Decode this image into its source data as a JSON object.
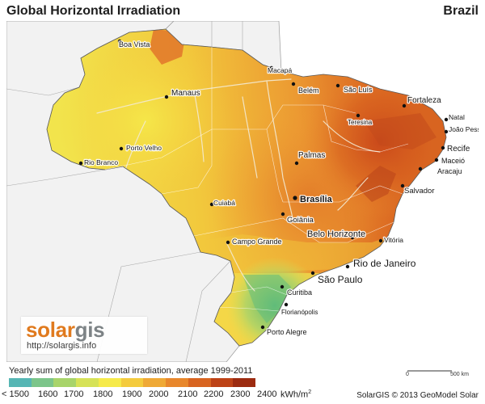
{
  "header": {
    "title": "Global Horizontal Irradiation",
    "country": "Brazil"
  },
  "logo": {
    "word_solar": "solar",
    "word_gis": "gis",
    "url": "http://solargis.info"
  },
  "legend": {
    "title": "Yearly sum of global horizontal irradiation, average 1999-2011",
    "labels": [
      "< 1500",
      "1600",
      "1700",
      "1800",
      "1900",
      "2000",
      "2100",
      "2200",
      "2300",
      "2400"
    ],
    "unit": "kWh/m",
    "unit_sup": "2",
    "colors": [
      "#56b6b4",
      "#7cc58a",
      "#a8d46a",
      "#d6e257",
      "#f6ea4a",
      "#f4cb3d",
      "#efa936",
      "#e8872c",
      "#d86420",
      "#bd4216",
      "#9c2b10"
    ]
  },
  "scale_bar": {
    "zero": "0",
    "label": "500 km"
  },
  "credit": "SolarGIS © 2013 GeoModel Solar",
  "map": {
    "colors": {
      "ocean": "#ffffff",
      "neighbors": "#f2f2f2",
      "border": "#8f8f8f",
      "rivers": "#f3ead3",
      "outline": "#4a4a4a"
    },
    "cities": [
      {
        "name": "Boa Vista",
        "bold": false
      },
      {
        "name": "Macapá",
        "bold": false
      },
      {
        "name": "Manaus",
        "bold": false
      },
      {
        "name": "Belém",
        "bold": false
      },
      {
        "name": "São Luís",
        "bold": false
      },
      {
        "name": "Fortaleza",
        "bold": false
      },
      {
        "name": "Teresina",
        "bold": false
      },
      {
        "name": "Natal",
        "bold": false
      },
      {
        "name": "João Pessoa",
        "bold": false
      },
      {
        "name": "Recife",
        "bold": false
      },
      {
        "name": "Maceió",
        "bold": false
      },
      {
        "name": "Aracaju",
        "bold": false
      },
      {
        "name": "Salvador",
        "bold": false
      },
      {
        "name": "Porto Velho",
        "bold": false
      },
      {
        "name": "Rio Branco",
        "bold": false
      },
      {
        "name": "Palmas",
        "bold": false
      },
      {
        "name": "Brasília",
        "bold": true
      },
      {
        "name": "Cuiabá",
        "bold": false
      },
      {
        "name": "Goiânia",
        "bold": false
      },
      {
        "name": "Campo Grande",
        "bold": false
      },
      {
        "name": "Belo Horizonte",
        "bold": false
      },
      {
        "name": "Vitória",
        "bold": false
      },
      {
        "name": "Rio de Janeiro",
        "bold": false
      },
      {
        "name": "São Paulo",
        "bold": false
      },
      {
        "name": "Curitiba",
        "bold": false
      },
      {
        "name": "Florianópolis",
        "bold": false
      },
      {
        "name": "Porto Alegre",
        "bold": false
      }
    ]
  }
}
